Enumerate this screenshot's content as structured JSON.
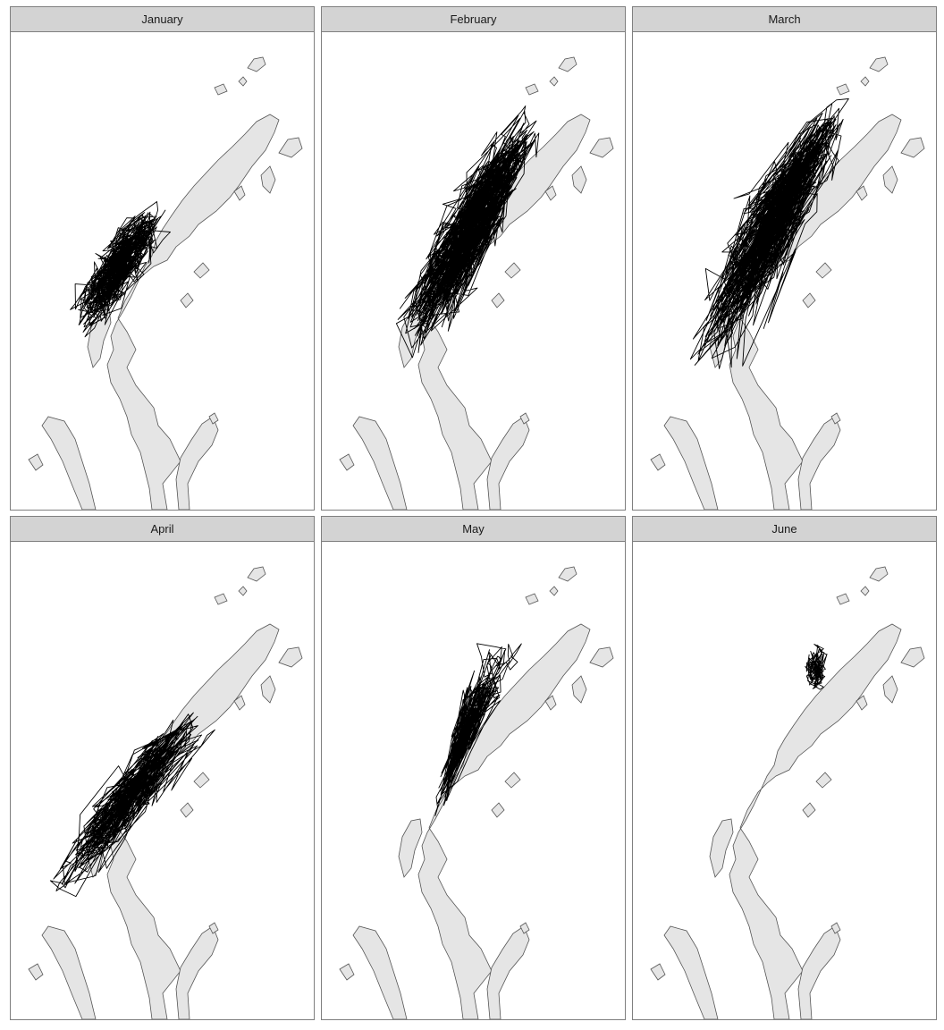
{
  "facets": [
    {
      "label": "January",
      "activity": "high"
    },
    {
      "label": "February",
      "activity": "very-high"
    },
    {
      "label": "March",
      "activity": "very-high"
    },
    {
      "label": "April",
      "activity": "high"
    },
    {
      "label": "May",
      "activity": "medium"
    },
    {
      "label": "June",
      "activity": "low"
    }
  ],
  "colors": {
    "land": "#e5e5e5",
    "coastline": "#555555",
    "track": "#000000",
    "strip": "#d3d3d3",
    "border": "#7f7f7f"
  }
}
